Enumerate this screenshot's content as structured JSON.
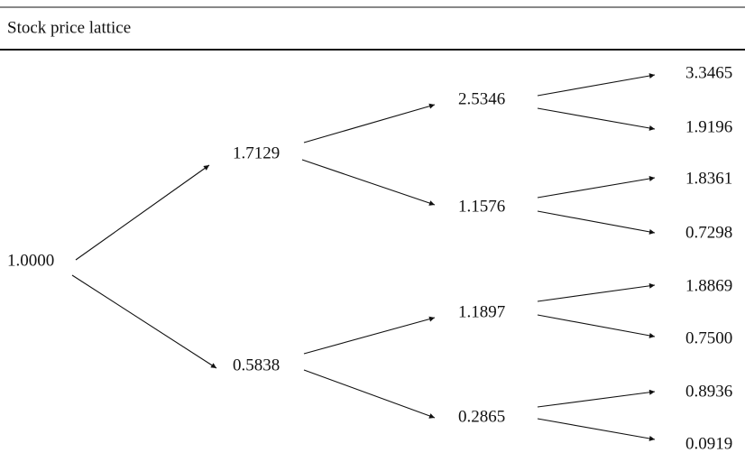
{
  "header": {
    "title": "Stock price lattice"
  },
  "nodes": [
    {
      "label": "1.0000"
    },
    {
      "label": "1.7129"
    },
    {
      "label": "0.5838"
    },
    {
      "label": "2.5346"
    },
    {
      "label": "1.1576"
    },
    {
      "label": "1.1897"
    },
    {
      "label": "0.2865"
    },
    {
      "label": "3.3465"
    },
    {
      "label": "1.9196"
    },
    {
      "label": "1.8361"
    },
    {
      "label": "0.7298"
    },
    {
      "label": "1.8869"
    },
    {
      "label": "0.7500"
    },
    {
      "label": "0.8936"
    },
    {
      "label": "0.0919"
    }
  ]
}
